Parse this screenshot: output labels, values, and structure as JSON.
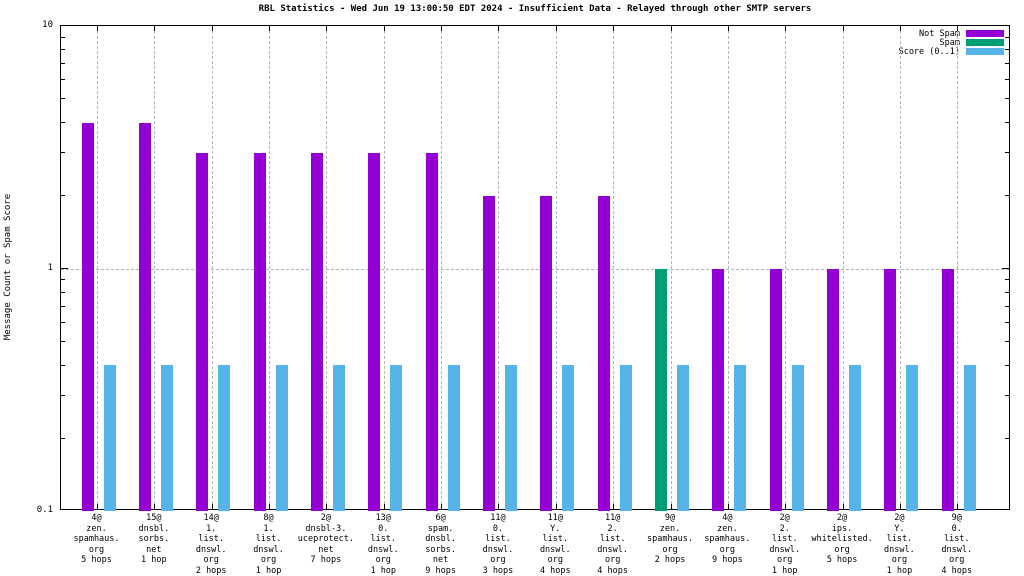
{
  "chart_data": {
    "type": "bar",
    "title": "RBL Statistics - Wed Jun 19 13:00:50 EDT 2024 - Insufficient Data - Relayed through other SMTP servers",
    "ylabel": "Message Count or Spam Score",
    "y_scale": "log",
    "ylim": [
      0.1,
      10
    ],
    "grid": {
      "x_gridlines_dashed": true,
      "y_gridline_at": 1
    },
    "legend_position": "top-right-inside",
    "yticks": [
      {
        "value": 10,
        "label": "10"
      },
      {
        "value": 1,
        "label": "1"
      },
      {
        "value": 0.1,
        "label": "0.1"
      }
    ],
    "colors": {
      "not_spam": "#9400d3",
      "spam": "#009e73",
      "score": "#56b4e9",
      "grid": "#b3b3b3"
    },
    "legend": [
      {
        "series": "not_spam",
        "label": "Not Spam"
      },
      {
        "series": "spam",
        "label": "Spam"
      },
      {
        "series": "score",
        "label": "Score (0..1)"
      }
    ],
    "groups": [
      {
        "label_lines": [
          "4@",
          "zen.",
          "spamhaus.",
          "org",
          "5 hops"
        ],
        "series": "not_spam",
        "count": 4,
        "score": 0.4
      },
      {
        "label_lines": [
          "15@",
          "dnsbl.",
          "sorbs.",
          "net",
          "1 hop"
        ],
        "series": "not_spam",
        "count": 4,
        "score": 0.4
      },
      {
        "label_lines": [
          "14@",
          "1.",
          "list.",
          "dnswl.",
          "org",
          "2 hops"
        ],
        "series": "not_spam",
        "count": 3,
        "score": 0.4
      },
      {
        "label_lines": [
          "8@",
          "1.",
          "list.",
          "dnswl.",
          "org",
          "1 hop"
        ],
        "series": "not_spam",
        "count": 3,
        "score": 0.4
      },
      {
        "label_lines": [
          "2@",
          "dnsbl-3.",
          "uceprotect.",
          "net",
          "7 hops"
        ],
        "series": "not_spam",
        "count": 3,
        "score": 0.4
      },
      {
        "label_lines": [
          "13@",
          "0.",
          "list.",
          "dnswl.",
          "org",
          "1 hop"
        ],
        "series": "not_spam",
        "count": 3,
        "score": 0.4
      },
      {
        "label_lines": [
          "6@",
          "spam.",
          "dnsbl.",
          "sorbs.",
          "net",
          "9 hops"
        ],
        "series": "not_spam",
        "count": 3,
        "score": 0.4
      },
      {
        "label_lines": [
          "11@",
          "0.",
          "list.",
          "dnswl.",
          "org",
          "3 hops"
        ],
        "series": "not_spam",
        "count": 2,
        "score": 0.4
      },
      {
        "label_lines": [
          "11@",
          "Y.",
          "list.",
          "dnswl.",
          "org",
          "4 hops"
        ],
        "series": "not_spam",
        "count": 2,
        "score": 0.4
      },
      {
        "label_lines": [
          "11@",
          "2.",
          "list.",
          "dnswl.",
          "org",
          "4 hops"
        ],
        "series": "not_spam",
        "count": 2,
        "score": 0.4
      },
      {
        "label_lines": [
          "9@",
          "zen.",
          "spamhaus.",
          "org",
          "2 hops"
        ],
        "series": "spam",
        "count": 1,
        "score": 0.4
      },
      {
        "label_lines": [
          "4@",
          "zen.",
          "spamhaus.",
          "org",
          "9 hops"
        ],
        "series": "not_spam",
        "count": 1,
        "score": 0.4
      },
      {
        "label_lines": [
          "2@",
          "2.",
          "list.",
          "dnswl.",
          "org",
          "1 hop"
        ],
        "series": "not_spam",
        "count": 1,
        "score": 0.4
      },
      {
        "label_lines": [
          "2@",
          "ips.",
          "whitelisted.",
          "org",
          "5 hops"
        ],
        "series": "not_spam",
        "count": 1,
        "score": 0.4
      },
      {
        "label_lines": [
          "2@",
          "Y.",
          "list.",
          "dnswl.",
          "org",
          "1 hop"
        ],
        "series": "not_spam",
        "count": 1,
        "score": 0.4
      },
      {
        "label_lines": [
          "9@",
          "0.",
          "list.",
          "dnswl.",
          "org",
          "4 hops"
        ],
        "series": "not_spam",
        "count": 1,
        "score": 0.4
      }
    ]
  }
}
